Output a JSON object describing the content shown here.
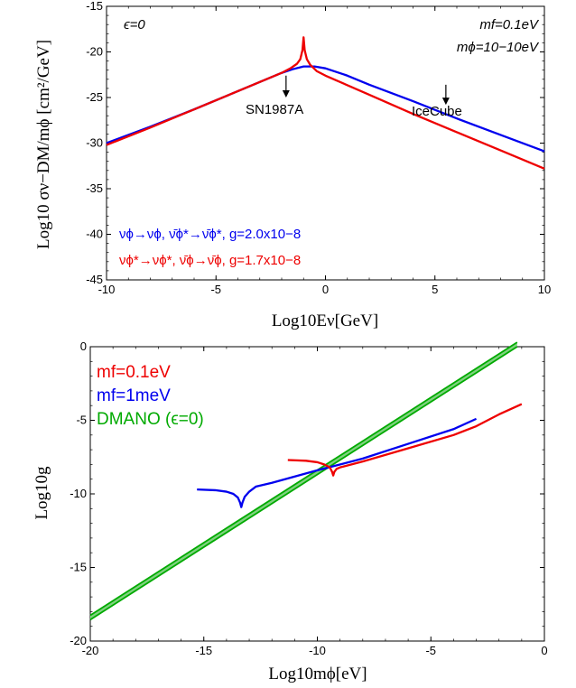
{
  "chart_data": [
    {
      "type": "line",
      "xlabel": "Log10Eν[GeV]",
      "ylabel": "Log10 σν−DM/mϕ [cm²/GeV]",
      "xlim": [
        -10,
        10
      ],
      "ylim": [
        -45,
        -15
      ],
      "x_ticks": [
        "-10",
        "-5",
        "0",
        "5",
        "10"
      ],
      "y_ticks": [
        "-15",
        "-20",
        "-25",
        "-30",
        "-35",
        "-40",
        "-45"
      ],
      "annotations": {
        "epsilon": "ϵ=0",
        "mf": "mf=0.1eV",
        "mphi": "mϕ=10−10eV",
        "sn": "SN1987A",
        "icecube": "IceCube"
      },
      "arrows": [
        {
          "label": "SN1987A",
          "x": -1.8,
          "y_from": -22.6,
          "y_to": -25.0
        },
        {
          "label": "IceCube",
          "x": 5.5,
          "y_from": -23.6,
          "y_to": -25.8
        }
      ],
      "series": [
        {
          "name": "νϕ→νϕ, ν̄ϕ*→ν̄ϕ*, g=2.0x10−8",
          "color": "#0000ee",
          "x": [
            -10,
            -8,
            -6,
            -4,
            -3,
            -2,
            -1.5,
            -1,
            -0.5,
            0,
            1,
            2,
            4,
            6,
            8,
            10
          ],
          "y": [
            -30.0,
            -28.2,
            -26.3,
            -24.3,
            -23.3,
            -22.3,
            -21.9,
            -21.6,
            -21.6,
            -21.8,
            -22.6,
            -23.6,
            -25.4,
            -27.3,
            -29.1,
            -30.9
          ]
        },
        {
          "name": "νϕ*→νϕ*, ν̄ϕ→ν̄ϕ, g=1.7x10−8",
          "color": "#ee0000",
          "x": [
            -10,
            -8,
            -6,
            -4,
            -3,
            -2,
            -1.6,
            -1.3,
            -1.15,
            -1.05,
            -1.0,
            -0.95,
            -0.85,
            -0.7,
            -0.4,
            0,
            2,
            4,
            6,
            8,
            10
          ],
          "y": [
            -30.2,
            -28.3,
            -26.3,
            -24.3,
            -23.3,
            -22.3,
            -21.8,
            -21.3,
            -20.8,
            -19.8,
            -18.4,
            -19.8,
            -20.8,
            -21.4,
            -22.1,
            -22.6,
            -24.7,
            -26.8,
            -28.8,
            -30.8,
            -32.8
          ]
        }
      ]
    },
    {
      "type": "line",
      "xlabel": "Log10mϕ[eV]",
      "ylabel": "Log10g",
      "xlim": [
        -20,
        0
      ],
      "ylim": [
        -20,
        0
      ],
      "x_ticks": [
        "-20",
        "-15",
        "-10",
        "-5",
        "0"
      ],
      "y_ticks": [
        "0",
        "-5",
        "-10",
        "-15",
        "-20"
      ],
      "series": [
        {
          "name": "mf=0.1eV",
          "color": "#ee0000",
          "x": [
            -11.3,
            -10.5,
            -10.0,
            -9.7,
            -9.45,
            -9.35,
            -9.3,
            -9.25,
            -9.15,
            -9.0,
            -8.0,
            -6.0,
            -4.0,
            -3.0,
            -2.0,
            -1.0
          ],
          "y": [
            -7.7,
            -7.75,
            -7.85,
            -8.0,
            -8.2,
            -8.5,
            -8.75,
            -8.5,
            -8.3,
            -8.2,
            -7.8,
            -6.9,
            -6.0,
            -5.4,
            -4.6,
            -3.9
          ]
        },
        {
          "name": "mf=1meV",
          "color": "#0000ee",
          "x": [
            -15.3,
            -14.5,
            -14.0,
            -13.7,
            -13.5,
            -13.4,
            -13.35,
            -13.3,
            -13.2,
            -13.0,
            -12.7,
            -12.0,
            -10.0,
            -8.0,
            -6.0,
            -4.0,
            -3.0
          ],
          "y": [
            -9.7,
            -9.75,
            -9.85,
            -10.0,
            -10.25,
            -10.6,
            -10.9,
            -10.6,
            -10.2,
            -9.85,
            -9.5,
            -9.25,
            -8.4,
            -7.6,
            -6.6,
            -5.6,
            -4.9
          ]
        },
        {
          "name": "DMANO (ϵ=0)",
          "color": "#00aa00",
          "x": [
            -20,
            -1.2
          ],
          "y_band": [
            [
              -18.55,
              -18.25
            ],
            [
              0,
              0.3
            ]
          ]
        }
      ]
    }
  ]
}
